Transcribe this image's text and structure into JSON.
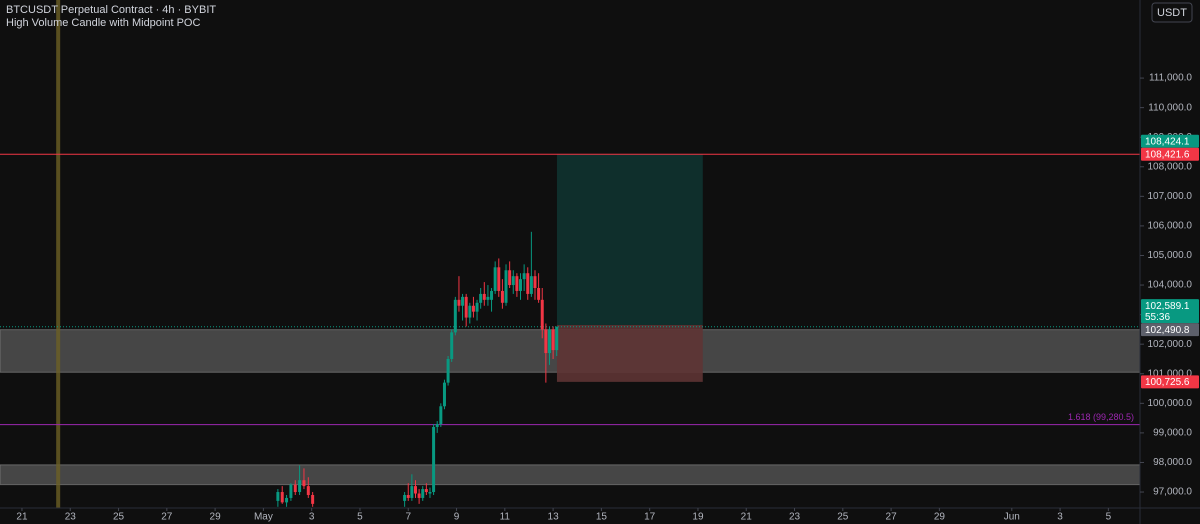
{
  "chart_data": {
    "type": "candlestick",
    "title": "BTCUSDT Perpetual Contract · 4h · BYBIT",
    "subtitle": "High Volume Candle with Midpoint POC",
    "currency_button": "USDT",
    "up_color": "#089981",
    "down_color": "#f23645",
    "xlim": [
      -0.91,
      46.31
    ],
    "ylim": [
      96460,
      113640
    ],
    "xticks": [
      {
        "value": 0,
        "label": "21"
      },
      {
        "value": 2,
        "label": "23"
      },
      {
        "value": 4,
        "label": "25"
      },
      {
        "value": 6,
        "label": "27"
      },
      {
        "value": 8,
        "label": "29"
      },
      {
        "value": 10,
        "label": "May"
      },
      {
        "value": 12,
        "label": "3"
      },
      {
        "value": 14,
        "label": "5"
      },
      {
        "value": 16,
        "label": "7"
      },
      {
        "value": 18,
        "label": "9"
      },
      {
        "value": 20,
        "label": "11"
      },
      {
        "value": 22,
        "label": "13"
      },
      {
        "value": 24,
        "label": "15"
      },
      {
        "value": 26,
        "label": "17"
      },
      {
        "value": 28,
        "label": "19"
      },
      {
        "value": 30,
        "label": "21"
      },
      {
        "value": 32,
        "label": "23"
      },
      {
        "value": 34,
        "label": "25"
      },
      {
        "value": 36,
        "label": "27"
      },
      {
        "value": 38,
        "label": "29"
      },
      {
        "value": 41,
        "label": "Jun"
      },
      {
        "value": 43,
        "label": "3"
      },
      {
        "value": 45,
        "label": "5"
      }
    ],
    "yticks": [
      {
        "value": 97000,
        "label": "97,000.0"
      },
      {
        "value": 98000,
        "label": "98,000.0"
      },
      {
        "value": 99000,
        "label": "99,000.0"
      },
      {
        "value": 100000,
        "label": "100,000.0"
      },
      {
        "value": 101000,
        "label": "101,000.0"
      },
      {
        "value": 102000,
        "label": "102,000.0"
      },
      {
        "value": 103000,
        "label": "103,000.0"
      },
      {
        "value": 104000,
        "label": "104,000.0"
      },
      {
        "value": 105000,
        "label": "105,000.0"
      },
      {
        "value": 106000,
        "label": "106,000.0"
      },
      {
        "value": 107000,
        "label": "107,000.0"
      },
      {
        "value": 108000,
        "label": "108,000.0"
      },
      {
        "value": 109000,
        "label": "109,000.0"
      },
      {
        "value": 110000,
        "label": "110,000.0"
      },
      {
        "value": 111000,
        "label": "111,000.0"
      }
    ],
    "x": [
      10.6,
      10.78,
      10.96,
      11.14,
      11.32,
      11.5,
      11.68,
      11.86,
      12.04,
      15.85,
      16.0,
      16.15,
      16.3,
      16.45,
      16.6,
      16.75,
      16.9,
      17.05,
      17.2,
      17.35,
      17.5,
      17.65,
      17.8,
      17.95,
      18.1,
      18.25,
      18.4,
      18.55,
      18.7,
      18.85,
      19.0,
      19.15,
      19.3,
      19.45,
      19.6,
      19.75,
      19.9,
      20.05,
      20.2,
      20.35,
      20.5,
      20.65,
      20.8,
      20.95,
      21.1,
      21.25,
      21.4,
      21.55,
      21.7,
      21.85,
      22.0,
      22.15
    ],
    "open": [
      96700,
      97000,
      96650,
      96800,
      97250,
      97000,
      97400,
      97200,
      96900,
      96700,
      96900,
      96800,
      97200,
      96950,
      96800,
      97100,
      96950,
      97000,
      99200,
      99300,
      99900,
      100700,
      101500,
      102400,
      103500,
      103300,
      103600,
      102900,
      103300,
      103100,
      103400,
      103700,
      103500,
      103500,
      103800,
      104600,
      103800,
      103400,
      104500,
      104000,
      104300,
      103800,
      104200,
      104400,
      103700,
      104300,
      103900,
      103500,
      102500,
      101700,
      102500,
      101800
    ],
    "high": [
      97100,
      97200,
      96900,
      97300,
      97400,
      97900,
      97800,
      97500,
      97000,
      97000,
      97300,
      97600,
      97400,
      97100,
      97200,
      97300,
      97150,
      99300,
      99400,
      100000,
      100800,
      101600,
      102500,
      103600,
      104300,
      103700,
      103700,
      103400,
      103600,
      103500,
      103900,
      104100,
      104000,
      103900,
      104800,
      104900,
      104200,
      104700,
      104800,
      104500,
      104400,
      104400,
      104700,
      104600,
      105800,
      104500,
      104400,
      103900,
      102700,
      102600,
      102600,
      102600
    ],
    "low": [
      96500,
      96600,
      96500,
      96700,
      96900,
      96900,
      97100,
      96800,
      96500,
      96500,
      96700,
      96700,
      96800,
      96600,
      96700,
      96900,
      96800,
      96900,
      99000,
      99200,
      99800,
      100600,
      101400,
      102300,
      103100,
      102800,
      102600,
      102700,
      102900,
      102800,
      103200,
      103300,
      103300,
      103100,
      103700,
      103600,
      103200,
      103300,
      103900,
      103700,
      103600,
      103500,
      103800,
      103500,
      103600,
      103500,
      103400,
      102200,
      100700,
      101300,
      101500,
      101600
    ],
    "close": [
      97000,
      96650,
      96800,
      97250,
      97000,
      97400,
      97200,
      96900,
      96600,
      96900,
      96800,
      97200,
      96950,
      96800,
      97100,
      97000,
      97000,
      99200,
      99300,
      99900,
      100700,
      101500,
      102400,
      103500,
      103300,
      103600,
      102900,
      103300,
      103100,
      103400,
      103700,
      103500,
      103600,
      103800,
      104600,
      103800,
      103400,
      104500,
      104000,
      104300,
      103800,
      104200,
      104400,
      103700,
      104300,
      103900,
      103500,
      102500,
      101700,
      102500,
      101800,
      102589.1
    ],
    "zones": [
      {
        "low": 101050,
        "high": 102490.8,
        "color": "#5a5a5a"
      },
      {
        "low": 97250,
        "high": 97920,
        "color": "#5a5a5a"
      }
    ],
    "vlines": [
      {
        "x": 1.5,
        "color": "#6b5f24"
      }
    ],
    "levels": [
      {
        "value": 108421.6,
        "color": "#f23645",
        "style": "solid"
      },
      {
        "value": 99280.5,
        "color": "#9c27b0",
        "style": "solid",
        "label": "1.618 (99,280.5)"
      },
      {
        "value": 102589.1,
        "color": "#089981",
        "style": "dotted"
      }
    ],
    "position": {
      "x_start": 22.16,
      "x_end": 28.2,
      "target": 108424.1,
      "entry": 102650,
      "stop": 100725.6,
      "profit_color": "#0f2f2c",
      "loss_color": "#5e3434"
    },
    "price_labels": [
      {
        "value": 108424.1,
        "label": "108,424.1",
        "color": "#089981"
      },
      {
        "value": 108421.6,
        "label": "108,421.6",
        "color": "#f23645"
      },
      {
        "value": 102589.1,
        "label": "102,589.1",
        "countdown": "55:36",
        "color": "#089981"
      },
      {
        "value": 102490.8,
        "label": "102,490.8",
        "color": "#5d606b"
      },
      {
        "value": 100725.6,
        "label": "100,725.6",
        "color": "#f23645"
      }
    ]
  }
}
